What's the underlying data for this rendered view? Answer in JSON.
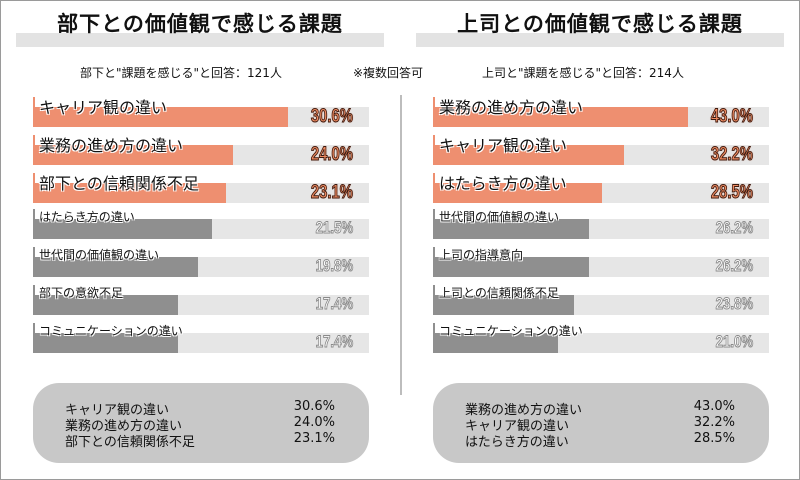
{
  "note": "※複数回答可",
  "chart_data": [
    {
      "type": "bar",
      "orientation": "horizontal",
      "title": "部下との価値観で感じる課題",
      "subtitle": "部下と\"課題を感じる\"と回答：121人",
      "xlim": [
        0,
        40.3
      ],
      "categories": [
        "キャリア観の違い",
        "業務の進め方の違い",
        "部下との信頼関係不足",
        "はたらき方の違い",
        "世代間の価値観の違い",
        "部下の意欲不足",
        "コミュニケーションの違い"
      ],
      "values": [
        30.6,
        24.0,
        23.1,
        21.5,
        19.8,
        17.4,
        17.4
      ],
      "labels": [
        "30.6%",
        "24.0%",
        "23.1%",
        "21.5%",
        "19.8%",
        "17.4%",
        "17.4%"
      ],
      "highlight_count": 3,
      "summary": [
        {
          "label": "キャリア観の違い",
          "value": "30.6%"
        },
        {
          "label": "業務の進め方の違い",
          "value": "24.0%"
        },
        {
          "label": "部下との信頼関係不足",
          "value": "23.1%"
        }
      ]
    },
    {
      "type": "bar",
      "orientation": "horizontal",
      "title": "上司との価値観で感じる課題",
      "subtitle": "上司と\"課題を感じる\"と回答：214人",
      "xlim": [
        0,
        56.6
      ],
      "categories": [
        "業務の進め方の違い",
        "キャリア観の違い",
        "はたらき方の違い",
        "世代間の価値観の違い",
        "上司の指導意向",
        "上司との信頼関係不足",
        "コミュニケーションの違い"
      ],
      "values": [
        43.0,
        32.2,
        28.5,
        26.2,
        26.2,
        23.8,
        21.0
      ],
      "labels": [
        "43.0%",
        "32.2%",
        "28.5%",
        "26.2%",
        "26.2%",
        "23.8%",
        "21.0%"
      ],
      "highlight_count": 3,
      "summary": [
        {
          "label": "業務の進め方の違い",
          "value": "43.0%"
        },
        {
          "label": "キャリア観の違い",
          "value": "32.2%"
        },
        {
          "label": "はたらき方の違い",
          "value": "28.5%"
        }
      ]
    }
  ],
  "colors": {
    "highlight": "#ee8f70",
    "normal": "#8f8f8f",
    "track": "#e6e6e6",
    "summary_bg": "#c8c8c8",
    "title_band": "#e3e3e3"
  }
}
